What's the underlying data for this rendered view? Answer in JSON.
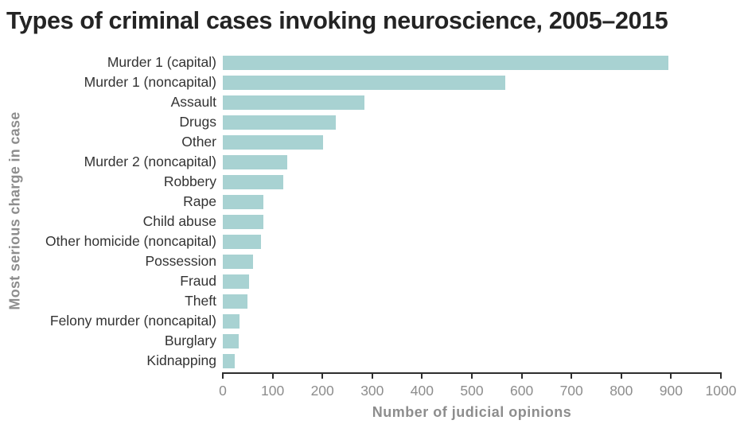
{
  "chart_data": {
    "type": "bar",
    "orientation": "horizontal",
    "title": "Types of criminal cases invoking neuroscience, 2005–2015",
    "xlabel": "Number of judicial opinions",
    "ylabel": "Most serious charge in case",
    "xlim": [
      0,
      1000
    ],
    "x_ticks": [
      0,
      100,
      200,
      300,
      400,
      500,
      600,
      700,
      800,
      900,
      1000
    ],
    "grid": false,
    "legend": false,
    "categories": [
      "Murder 1 (capital)",
      "Murder 1 (noncapital)",
      "Assault",
      "Drugs",
      "Other",
      "Murder 2 (noncapital)",
      "Robbery",
      "Rape",
      "Child abuse",
      "Other homicide (noncapital)",
      "Possession",
      "Fraud",
      "Theft",
      "Felony murder (noncapital)",
      "Burglary",
      "Kidnapping"
    ],
    "values": [
      895,
      567,
      284,
      227,
      201,
      130,
      121,
      82,
      82,
      77,
      60,
      52,
      50,
      33,
      32,
      24
    ]
  },
  "colors": {
    "bar": "#a8d2d2",
    "title_text": "#242424",
    "category_text": "#333333",
    "axis_line": "#2e2e2e",
    "tick_text": "#8d8d8d",
    "axis_title_text": "#8d8d8d",
    "background": "#ffffff"
  }
}
